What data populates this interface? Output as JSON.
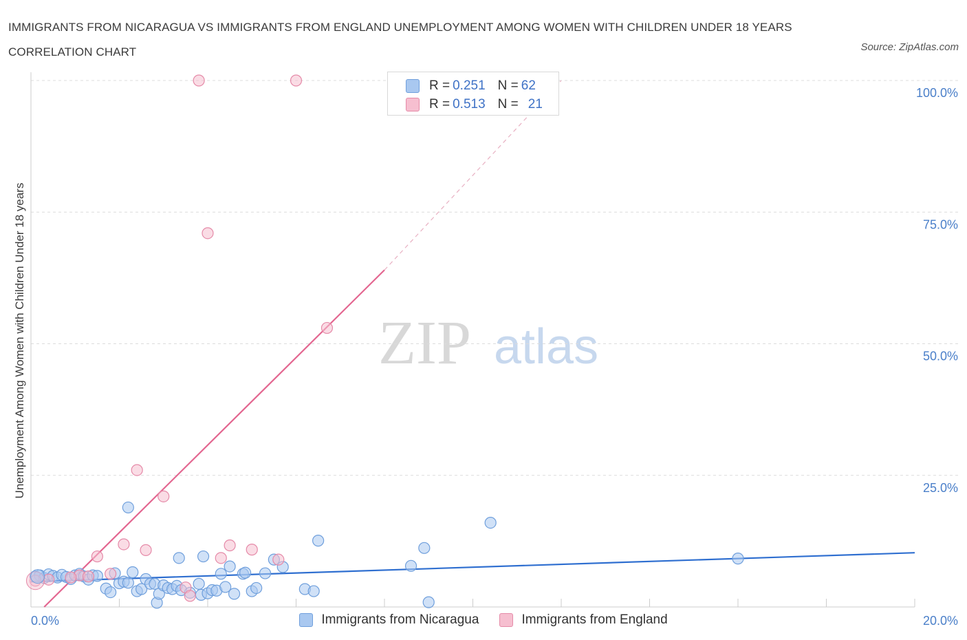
{
  "title": "IMMIGRANTS FROM NICARAGUA VS IMMIGRANTS FROM ENGLAND UNEMPLOYMENT AMONG WOMEN WITH CHILDREN UNDER 18 YEARS CORRELATION CHART",
  "source": "Source: ZipAtlas.com",
  "watermark": {
    "zip": "ZIP",
    "atlas": "atlas"
  },
  "legend": {
    "nicaragua": {
      "r_label": "R = ",
      "r_value": "0.251",
      "n_label": "N = ",
      "n_value": "62"
    },
    "england": {
      "r_label": "R = ",
      "r_value": "0.513",
      "n_label": "N = ",
      "n_value": "21"
    }
  },
  "colors": {
    "nicaragua_fill": "#a9c8f0",
    "nicaragua_stroke": "#6f9fdc",
    "nicaragua_line": "#2f6fd0",
    "england_fill": "#f6bfd0",
    "england_stroke": "#e58aa8",
    "england_line": "#e36690",
    "tick": "#4a7fc9",
    "grid": "#dcdcdc"
  },
  "chart_data": {
    "type": "scatter",
    "title": "IMMIGRANTS FROM NICARAGUA VS IMMIGRANTS FROM ENGLAND UNEMPLOYMENT AMONG WOMEN WITH CHILDREN UNDER 18 YEARS CORRELATION CHART",
    "xlabel": "",
    "ylabel": "Unemployment Among Women with Children Under 18 years",
    "xlim": [
      0,
      20
    ],
    "ylim": [
      0,
      100
    ],
    "x_ticks": [
      "0.0%",
      "20.0%"
    ],
    "y_ticks": [
      {
        "value": 100,
        "label": "100.0%"
      },
      {
        "value": 75,
        "label": "75.0%"
      },
      {
        "value": 50,
        "label": "50.0%"
      },
      {
        "value": 25,
        "label": "25.0%"
      }
    ],
    "series": [
      {
        "name": "Immigrants from Nicaragua",
        "r": 0.251,
        "n": 62,
        "trend": {
          "x": [
            0,
            20
          ],
          "y": [
            4.8,
            10.3
          ],
          "dashed_extension": false
        },
        "points": [
          [
            0.1,
            5.8
          ],
          [
            0.2,
            6.0
          ],
          [
            0.3,
            5.5
          ],
          [
            0.4,
            6.2
          ],
          [
            0.5,
            5.9
          ],
          [
            0.6,
            5.6
          ],
          [
            0.7,
            6.1
          ],
          [
            0.8,
            5.7
          ],
          [
            0.9,
            5.3
          ],
          [
            1.0,
            6.0
          ],
          [
            1.1,
            6.3
          ],
          [
            1.2,
            5.8
          ],
          [
            1.3,
            5.2
          ],
          [
            1.4,
            6.0
          ],
          [
            1.5,
            5.9
          ],
          [
            1.7,
            3.5
          ],
          [
            1.8,
            2.8
          ],
          [
            1.9,
            6.4
          ],
          [
            2.0,
            4.5
          ],
          [
            2.1,
            4.8
          ],
          [
            2.2,
            18.9
          ],
          [
            2.3,
            6.6
          ],
          [
            2.4,
            3.0
          ],
          [
            2.5,
            3.4
          ],
          [
            2.6,
            5.3
          ],
          [
            2.7,
            4.4
          ],
          [
            2.8,
            4.4
          ],
          [
            2.85,
            0.8
          ],
          [
            2.9,
            2.5
          ],
          [
            3.0,
            4.1
          ],
          [
            3.1,
            3.6
          ],
          [
            3.2,
            3.4
          ],
          [
            3.3,
            4.0
          ],
          [
            3.35,
            9.3
          ],
          [
            3.4,
            3.2
          ],
          [
            3.6,
            2.7
          ],
          [
            3.8,
            4.4
          ],
          [
            3.85,
            2.3
          ],
          [
            3.9,
            9.6
          ],
          [
            4.0,
            2.6
          ],
          [
            4.1,
            3.2
          ],
          [
            4.2,
            3.1
          ],
          [
            4.3,
            6.3
          ],
          [
            4.4,
            3.8
          ],
          [
            4.5,
            7.7
          ],
          [
            4.6,
            2.5
          ],
          [
            4.8,
            6.3
          ],
          [
            4.85,
            6.5
          ],
          [
            5.0,
            3.0
          ],
          [
            5.1,
            3.6
          ],
          [
            5.3,
            6.4
          ],
          [
            5.5,
            9.0
          ],
          [
            5.7,
            7.6
          ],
          [
            6.2,
            3.4
          ],
          [
            6.4,
            3.0
          ],
          [
            6.5,
            12.6
          ],
          [
            8.6,
            7.8
          ],
          [
            8.9,
            11.2
          ],
          [
            9.0,
            0.9
          ],
          [
            10.4,
            16.0
          ],
          [
            16.0,
            9.2
          ],
          [
            2.2,
            4.6
          ]
        ]
      },
      {
        "name": "Immigrants from England",
        "r": 0.513,
        "n": 21,
        "trend": {
          "x": [
            0.3,
            8.0
          ],
          "y": [
            0,
            64
          ],
          "dashed_extension": {
            "x": [
              8.0,
              12.0
            ],
            "y": [
              64,
              100
            ]
          }
        },
        "points": [
          [
            0.1,
            5.0
          ],
          [
            0.4,
            5.2
          ],
          [
            1.1,
            6.0
          ],
          [
            1.3,
            5.8
          ],
          [
            1.5,
            9.6
          ],
          [
            1.8,
            6.3
          ],
          [
            2.1,
            11.9
          ],
          [
            2.4,
            26.0
          ],
          [
            2.6,
            10.8
          ],
          [
            3.0,
            21.0
          ],
          [
            3.5,
            3.7
          ],
          [
            3.6,
            2.1
          ],
          [
            3.8,
            100
          ],
          [
            4.0,
            71.0
          ],
          [
            4.3,
            9.3
          ],
          [
            4.5,
            11.7
          ],
          [
            5.0,
            10.9
          ],
          [
            5.6,
            9.0
          ],
          [
            6.0,
            100
          ],
          [
            6.7,
            53.0
          ],
          [
            0.9,
            5.6
          ]
        ]
      }
    ]
  },
  "bottom_legend": {
    "nicaragua": "Immigrants from Nicaragua",
    "england": "Immigrants from England"
  }
}
